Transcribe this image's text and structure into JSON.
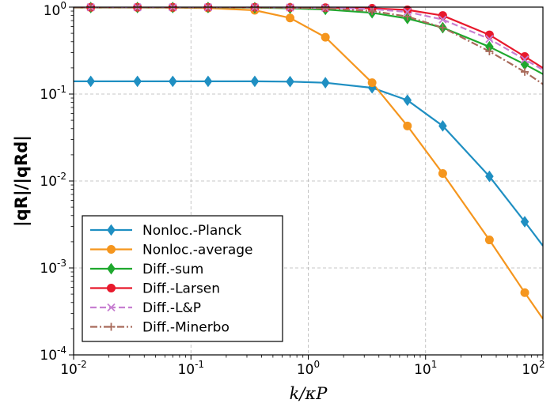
{
  "chart_data": {
    "type": "line",
    "xscale": "log",
    "yscale": "log",
    "xlim": [
      0.01,
      100
    ],
    "ylim": [
      0.0001,
      1
    ],
    "grid": true,
    "grid_style": "dashed",
    "legend_position": "lower-left",
    "xlabel": "k/κP",
    "ylabel": "|qR|/|qRd|",
    "x_ticks": [
      0.01,
      0.1,
      1,
      10,
      100
    ],
    "x_tick_labels": [
      {
        "base": "10",
        "exp": "-2"
      },
      {
        "base": "10",
        "exp": "-1"
      },
      {
        "base": "10",
        "exp": "0"
      },
      {
        "base": "10",
        "exp": "1"
      },
      {
        "base": "10",
        "exp": "2"
      }
    ],
    "y_ticks": [
      0.0001,
      0.001,
      0.01,
      0.1,
      1
    ],
    "y_tick_labels": [
      {
        "base": "10",
        "exp": "-4"
      },
      {
        "base": "10",
        "exp": "-3"
      },
      {
        "base": "10",
        "exp": "-2"
      },
      {
        "base": "10",
        "exp": "-1"
      },
      {
        "base": "10",
        "exp": "0"
      }
    ],
    "series": [
      {
        "name": "Nonloc.-Planck",
        "color": "#1f8fc2",
        "marker": "diamond",
        "dash": "solid",
        "x": [
          0.01,
          0.014,
          0.035,
          0.07,
          0.14,
          0.35,
          0.7,
          1.4,
          3.5,
          7,
          14,
          35,
          70,
          100
        ],
        "y": [
          0.14,
          0.14,
          0.14,
          0.14,
          0.14,
          0.14,
          0.139,
          0.135,
          0.118,
          0.085,
          0.043,
          0.0113,
          0.0034,
          0.0018
        ],
        "marker_x": [
          0.014,
          0.035,
          0.07,
          0.14,
          0.35,
          0.7,
          1.4,
          3.5,
          7,
          14,
          35,
          70
        ]
      },
      {
        "name": "Nonloc.-average",
        "color": "#f5961e",
        "marker": "circle",
        "dash": "solid",
        "x": [
          0.01,
          0.014,
          0.035,
          0.07,
          0.14,
          0.35,
          0.7,
          1.4,
          3.5,
          7,
          14,
          35,
          70,
          100
        ],
        "y": [
          0.99,
          0.99,
          0.99,
          0.985,
          0.975,
          0.92,
          0.75,
          0.45,
          0.135,
          0.043,
          0.0122,
          0.0021,
          0.00052,
          0.00026
        ],
        "marker_x": [
          0.014,
          0.035,
          0.07,
          0.14,
          0.35,
          0.7,
          1.4,
          3.5,
          7,
          14,
          35,
          70
        ]
      },
      {
        "name": "Diff.-sum",
        "color": "#1fa82e",
        "marker": "diamond",
        "dash": "solid",
        "x": [
          0.01,
          0.014,
          0.035,
          0.07,
          0.14,
          0.35,
          0.7,
          1.4,
          3.5,
          7,
          14,
          35,
          70,
          100
        ],
        "y": [
          0.99,
          0.99,
          0.99,
          0.99,
          0.99,
          0.985,
          0.97,
          0.94,
          0.86,
          0.74,
          0.58,
          0.35,
          0.22,
          0.17
        ],
        "marker_x": [
          0.014,
          0.035,
          0.07,
          0.14,
          0.35,
          0.7,
          1.4,
          3.5,
          7,
          14,
          35,
          70
        ]
      },
      {
        "name": "Diff.-Larsen",
        "color": "#e8192c",
        "marker": "circle",
        "dash": "solid",
        "x": [
          0.01,
          0.014,
          0.035,
          0.07,
          0.14,
          0.35,
          0.7,
          1.4,
          3.5,
          7,
          14,
          35,
          70,
          100
        ],
        "y": [
          0.995,
          0.995,
          0.995,
          0.995,
          0.995,
          0.995,
          0.99,
          0.985,
          0.97,
          0.93,
          0.8,
          0.48,
          0.27,
          0.2
        ],
        "marker_x": [
          0.014,
          0.035,
          0.07,
          0.14,
          0.35,
          0.7,
          1.4,
          3.5,
          7,
          14,
          35,
          70
        ]
      },
      {
        "name": "Diff.-L&P",
        "color": "#c77fd1",
        "marker": "x",
        "dash": "dashed",
        "x": [
          0.01,
          0.014,
          0.035,
          0.07,
          0.14,
          0.35,
          0.7,
          1.4,
          3.5,
          7,
          14,
          35,
          70,
          100
        ],
        "y": [
          0.995,
          0.995,
          0.995,
          0.995,
          0.995,
          0.995,
          0.99,
          0.98,
          0.95,
          0.88,
          0.72,
          0.43,
          0.25,
          0.19
        ],
        "marker_x": [
          0.014,
          0.035,
          0.07,
          0.14,
          0.35,
          0.7,
          1.4,
          3.5,
          7,
          14,
          35,
          70
        ]
      },
      {
        "name": "Diff.-Minerbo",
        "color": "#a86a5a",
        "marker": "plus",
        "dash": "dashdot",
        "x": [
          0.01,
          0.014,
          0.035,
          0.07,
          0.14,
          0.35,
          0.7,
          1.4,
          3.5,
          7,
          14,
          35,
          70,
          100
        ],
        "y": [
          0.995,
          0.995,
          0.995,
          0.995,
          0.995,
          0.99,
          0.985,
          0.97,
          0.9,
          0.78,
          0.58,
          0.31,
          0.18,
          0.13
        ],
        "marker_x": [
          0.014,
          0.035,
          0.07,
          0.14,
          0.35,
          0.7,
          1.4,
          3.5,
          7,
          14,
          35,
          70
        ]
      }
    ]
  }
}
